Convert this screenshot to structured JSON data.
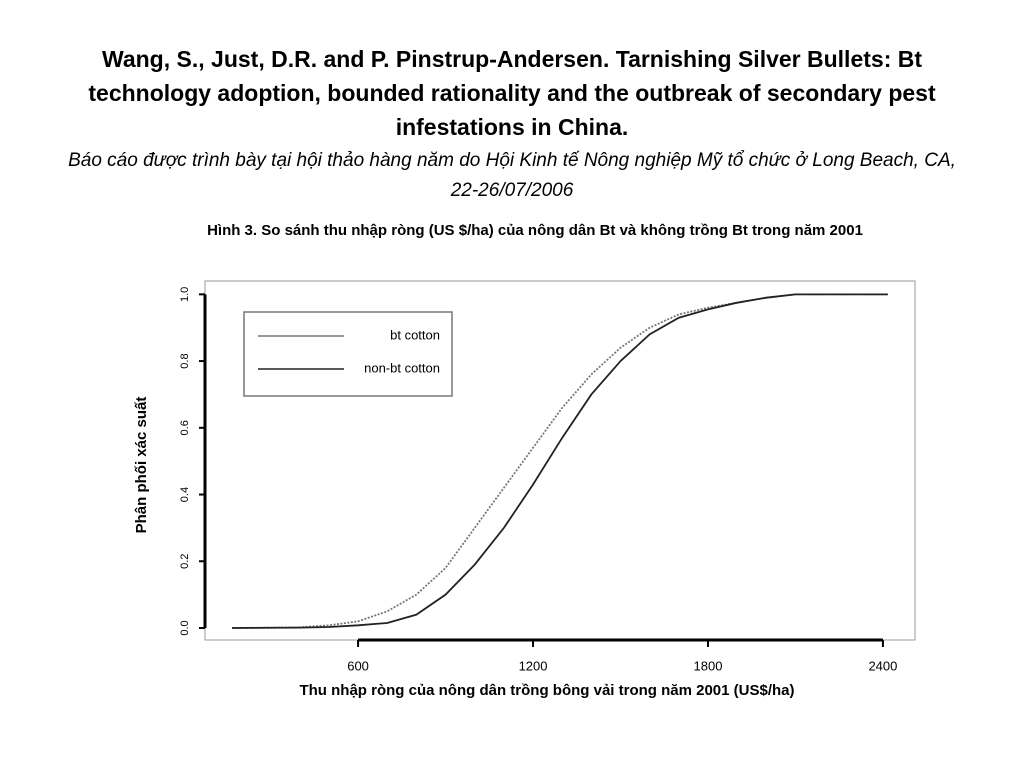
{
  "slide": {
    "citation": "Wang, S., Just, D.R. and P. Pinstrup-Andersen.  Tarnishing Silver Bullets:  Bt technology adoption, bounded rationality and the outbreak of secondary pest infestations in China.",
    "conference": "Báo cáo được trình bày tại hội thảo hàng năm do Hội Kinh tế Nông nghiệp Mỹ tổ chức ở Long Beach, CA, 22-26/07/2006"
  },
  "chart_data": {
    "type": "line",
    "title": "Hình 3. So sánh thu nhập ròng (US $/ha) của nông dân Bt và không trồng Bt trong năm 2001",
    "x_label": "Thu nhập ròng của nông dân trồng bông vải trong năm 2001 (US$/ha)",
    "y_label": "Phân phối xác suất",
    "x": [
      168,
      400,
      500,
      600,
      700,
      800,
      900,
      1000,
      1100,
      1200,
      1300,
      1400,
      1500,
      1600,
      1700,
      1800,
      1900,
      2000,
      2100,
      2417
    ],
    "series": [
      {
        "name": "bt cotton",
        "color": "#777777",
        "dash": true,
        "values": [
          0,
          0.002,
          0.008,
          0.02,
          0.05,
          0.1,
          0.18,
          0.3,
          0.42,
          0.54,
          0.66,
          0.76,
          0.84,
          0.9,
          0.94,
          0.96,
          0.975,
          0.99,
          1.0,
          1.0
        ]
      },
      {
        "name": "non-bt cotton",
        "color": "#222222",
        "dash": false,
        "values": [
          0,
          0.001,
          0.003,
          0.008,
          0.015,
          0.04,
          0.1,
          0.19,
          0.3,
          0.43,
          0.57,
          0.7,
          0.8,
          0.88,
          0.93,
          0.955,
          0.975,
          0.99,
          1.0,
          1.0
        ]
      }
    ],
    "xlim": [
      75,
      2510
    ],
    "ylim": [
      -0.036,
      1.04
    ],
    "xticks": [
      600,
      1200,
      1800,
      2400
    ],
    "yticks": [
      {
        "value": 0,
        "label": "0.0"
      },
      0.2,
      0.4,
      0.6,
      0.8,
      {
        "value": 1,
        "label": "1.0"
      }
    ],
    "legend": "upper left"
  }
}
